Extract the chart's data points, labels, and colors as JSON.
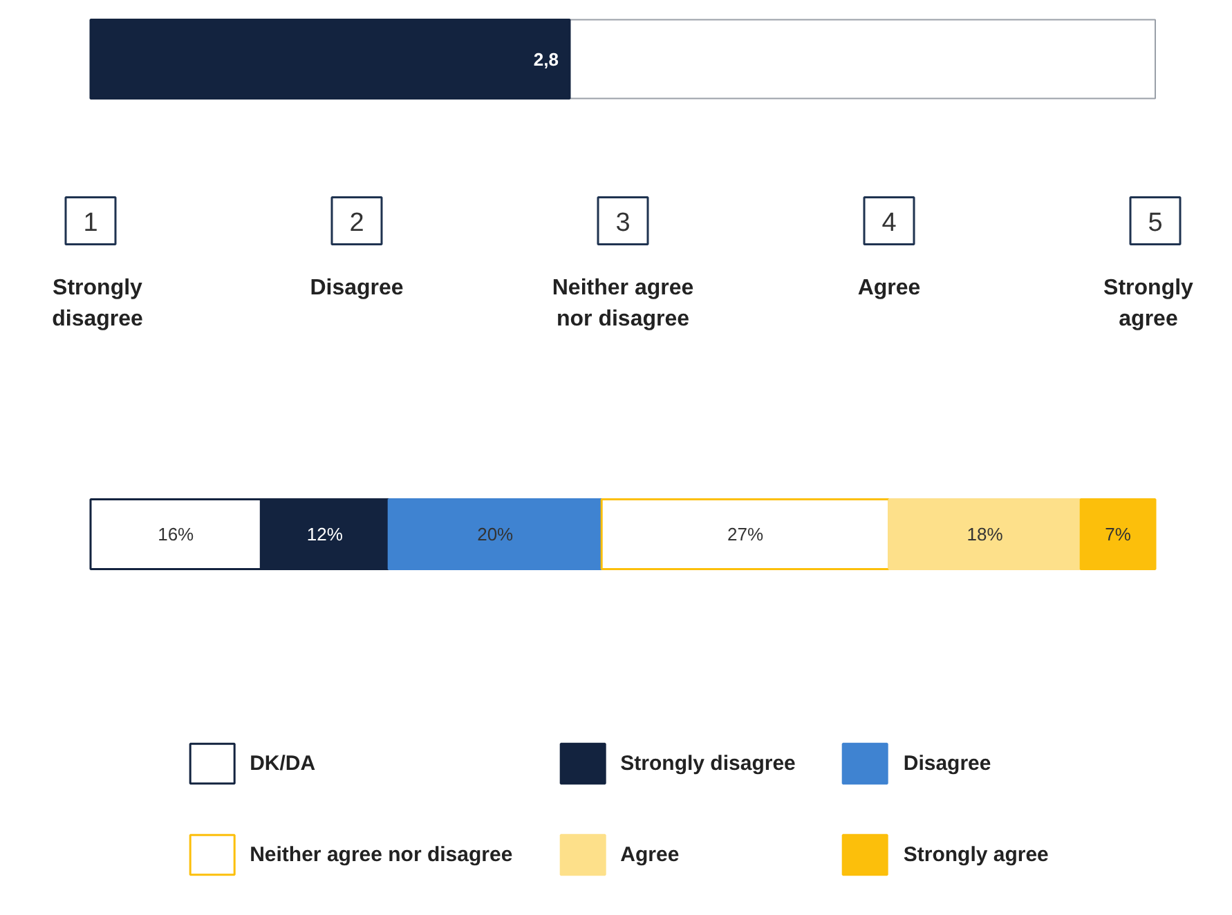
{
  "chart_data": [
    {
      "type": "bar",
      "orientation": "horizontal",
      "categories": [
        null
      ],
      "values": [
        2.8
      ],
      "color": "#13233f",
      "value_labels": [
        "2,8"
      ],
      "xlim": [
        1,
        5
      ],
      "xticks": [
        1,
        2,
        3,
        4,
        5
      ],
      "annotations": [
        "Strongly disagree",
        "Disagree",
        "Neither agree nor disagree",
        "Agree",
        "Strongly agree"
      ]
    },
    {
      "type": "bar",
      "orientation": "horizontal",
      "stacked": true,
      "categories": [
        null
      ],
      "legend": "bottom",
      "series": [
        {
          "name": "DK/DA",
          "color": "#ffffff",
          "values": [
            16
          ],
          "value_labels": [
            "16%"
          ]
        },
        {
          "name": "Strongly disagree",
          "color": "#13233f",
          "values": [
            12
          ],
          "value_labels": [
            "12%"
          ]
        },
        {
          "name": "Disagree",
          "color": "#3f83d1",
          "values": [
            20
          ],
          "value_labels": [
            "20%"
          ]
        },
        {
          "name": "Neither agree nor disagree",
          "color": "#ffffff",
          "values": [
            27
          ],
          "value_labels": [
            "27%"
          ]
        },
        {
          "name": "Agree",
          "color": "#fde08a",
          "values": [
            18
          ],
          "value_labels": [
            "18%"
          ]
        },
        {
          "name": "Strongly agree",
          "color": "#fcbf0b",
          "values": [
            7
          ],
          "value_labels": [
            "7%"
          ]
        }
      ]
    }
  ]
}
